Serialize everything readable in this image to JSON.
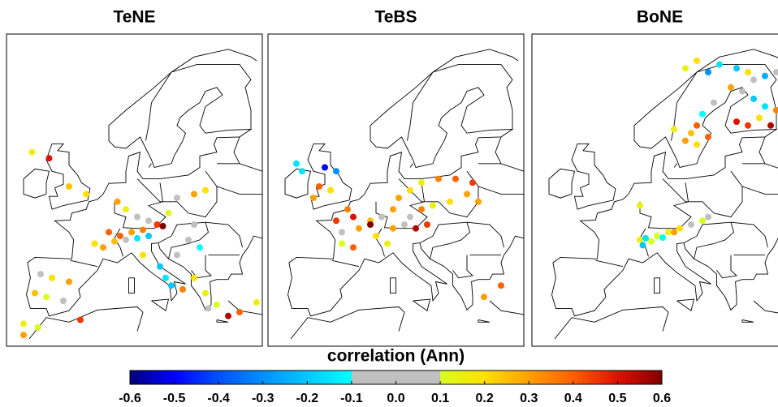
{
  "panels": [
    {
      "title": "TeNE",
      "points": [
        {
          "lon": -8.5,
          "lat": 57.5,
          "value": 0.15
        },
        {
          "lon": -5.5,
          "lat": 56.7,
          "value": 0.5
        },
        {
          "lon": -2,
          "lat": 53,
          "value": 0.25
        },
        {
          "lon": 1,
          "lat": 52,
          "value": 0.2
        },
        {
          "lon": 6.5,
          "lat": 51,
          "value": 0.3
        },
        {
          "lon": 8,
          "lat": 50,
          "value": 0.15
        },
        {
          "lon": 10,
          "lat": 49,
          "value": 0
        },
        {
          "lon": 12,
          "lat": 48.5,
          "value": -0.05
        },
        {
          "lon": 13.5,
          "lat": 48,
          "value": 0.45
        },
        {
          "lon": 14.5,
          "lat": 47.8,
          "value": 0.6
        },
        {
          "lon": 11,
          "lat": 47.3,
          "value": 0.35
        },
        {
          "lon": 9,
          "lat": 47,
          "value": 0.3
        },
        {
          "lon": 7,
          "lat": 46.5,
          "value": 0.4
        },
        {
          "lon": 6,
          "lat": 45.8,
          "value": 0.25
        },
        {
          "lon": 8,
          "lat": 46,
          "value": 0.05
        },
        {
          "lon": 10,
          "lat": 46.2,
          "value": -0.15
        },
        {
          "lon": 12,
          "lat": 46.5,
          "value": -0.2
        },
        {
          "lon": 4,
          "lat": 45,
          "value": 0.3
        },
        {
          "lon": 2.5,
          "lat": 45.5,
          "value": 0.2
        },
        {
          "lon": 15.5,
          "lat": 49.5,
          "value": 0.1
        },
        {
          "lon": 17,
          "lat": 51.5,
          "value": 0.05
        },
        {
          "lon": 20,
          "lat": 52,
          "value": 0.3
        },
        {
          "lon": 22,
          "lat": 52.5,
          "value": 0.2
        },
        {
          "lon": 20,
          "lat": 48,
          "value": -0.05
        },
        {
          "lon": 19,
          "lat": 46,
          "value": 0
        },
        {
          "lon": 21,
          "lat": 45,
          "value": -0.1
        },
        {
          "lon": 17,
          "lat": 44,
          "value": 0
        },
        {
          "lon": 14,
          "lat": 42.5,
          "value": -0.2
        },
        {
          "lon": 11,
          "lat": 44,
          "value": 0.2
        },
        {
          "lon": 15,
          "lat": 41,
          "value": -0.15
        },
        {
          "lon": 16,
          "lat": 40,
          "value": -0.2
        },
        {
          "lon": 18,
          "lat": 39.5,
          "value": 0.35
        },
        {
          "lon": 20,
          "lat": 41,
          "value": 0.2
        },
        {
          "lon": 22,
          "lat": 39,
          "value": 0.15
        },
        {
          "lon": 24,
          "lat": 37.5,
          "value": 0.1
        },
        {
          "lon": 26,
          "lat": 36,
          "value": 0.55
        },
        {
          "lon": 28,
          "lat": 36.5,
          "value": 0.4
        },
        {
          "lon": 22.5,
          "lat": 37,
          "value": 0
        },
        {
          "lon": -7,
          "lat": 41.5,
          "value": 0
        },
        {
          "lon": -5,
          "lat": 41,
          "value": 0.2
        },
        {
          "lon": -2,
          "lat": 40.5,
          "value": 0.3
        },
        {
          "lon": -8,
          "lat": 39,
          "value": 0.25
        },
        {
          "lon": -6,
          "lat": 38.5,
          "value": 0.1
        },
        {
          "lon": -3,
          "lat": 38,
          "value": 0.05
        },
        {
          "lon": -10,
          "lat": 35,
          "value": 0.15
        },
        {
          "lon": 0,
          "lat": 35.5,
          "value": 0.45
        },
        {
          "lon": -10,
          "lat": 33.5,
          "value": 0.3
        },
        {
          "lon": 31,
          "lat": 37.8,
          "value": 0.15
        },
        {
          "lon": -7.5,
          "lat": 34.5,
          "value": 0.1
        },
        {
          "lon": 5,
          "lat": 47,
          "value": 0.4
        }
      ]
    },
    {
      "title": "TeBS",
      "points": [
        {
          "lon": -8,
          "lat": 56,
          "value": -0.15
        },
        {
          "lon": -7,
          "lat": 55,
          "value": -0.15
        },
        {
          "lon": -3,
          "lat": 55.5,
          "value": -0.5
        },
        {
          "lon": -1,
          "lat": 55,
          "value": -0.3
        },
        {
          "lon": -4,
          "lat": 53,
          "value": 0.4
        },
        {
          "lon": -5,
          "lat": 51.5,
          "value": 0.3
        },
        {
          "lon": -2,
          "lat": 52.5,
          "value": 0.2
        },
        {
          "lon": 1,
          "lat": 50,
          "value": 0.35
        },
        {
          "lon": 2,
          "lat": 49,
          "value": 0.5
        },
        {
          "lon": -1,
          "lat": 48.5,
          "value": 0.45
        },
        {
          "lon": 0,
          "lat": 47,
          "value": 0
        },
        {
          "lon": 3,
          "lat": 47.5,
          "value": 0.3
        },
        {
          "lon": 5,
          "lat": 48.5,
          "value": 0.25
        },
        {
          "lon": 7,
          "lat": 49,
          "value": 0
        },
        {
          "lon": 9,
          "lat": 50,
          "value": 0.3
        },
        {
          "lon": 10,
          "lat": 51.5,
          "value": 0.3
        },
        {
          "lon": 12,
          "lat": 52.5,
          "value": 0.2
        },
        {
          "lon": 14,
          "lat": 53.5,
          "value": 0.15
        },
        {
          "lon": 17,
          "lat": 54,
          "value": 0.35
        },
        {
          "lon": 20,
          "lat": 54,
          "value": 0.4
        },
        {
          "lon": 23,
          "lat": 53.5,
          "value": 0.45
        },
        {
          "lon": 22,
          "lat": 52,
          "value": 0.3
        },
        {
          "lon": 24,
          "lat": 51,
          "value": 0.3
        },
        {
          "lon": 19,
          "lat": 51,
          "value": 0.2
        },
        {
          "lon": 16,
          "lat": 50.5,
          "value": 0.15
        },
        {
          "lon": 14,
          "lat": 50,
          "value": 0.35
        },
        {
          "lon": 12,
          "lat": 49,
          "value": 0
        },
        {
          "lon": 11,
          "lat": 48,
          "value": -0.05
        },
        {
          "lon": 9,
          "lat": 47.5,
          "value": 0.3
        },
        {
          "lon": 13,
          "lat": 47.5,
          "value": 0.55
        },
        {
          "lon": 15,
          "lat": 48,
          "value": 0.45
        },
        {
          "lon": 6,
          "lat": 46.5,
          "value": 0.2
        },
        {
          "lon": 8,
          "lat": 45.5,
          "value": 0.15
        },
        {
          "lon": 2,
          "lat": 45,
          "value": 0.4
        },
        {
          "lon": 0,
          "lat": 45.5,
          "value": 0.1
        },
        {
          "lon": 28,
          "lat": 40,
          "value": 0.4
        },
        {
          "lon": 25,
          "lat": 38.5,
          "value": 0.3
        },
        {
          "lon": 5,
          "lat": 48,
          "value": 0.6
        }
      ]
    },
    {
      "title": "BoNE",
      "points": [
        {
          "lon": 14,
          "lat": 68.5,
          "value": 0.15
        },
        {
          "lon": 16,
          "lat": 69.5,
          "value": 0.2
        },
        {
          "lon": 18,
          "lat": 68,
          "value": -0.3
        },
        {
          "lon": 20,
          "lat": 69,
          "value": -0.15
        },
        {
          "lon": 23,
          "lat": 68.5,
          "value": -0.2
        },
        {
          "lon": 25,
          "lat": 68,
          "value": 0.2
        },
        {
          "lon": 26,
          "lat": 67,
          "value": -0.05
        },
        {
          "lon": 28,
          "lat": 67.5,
          "value": -0.25
        },
        {
          "lon": 30,
          "lat": 68,
          "value": -0.05
        },
        {
          "lon": 22,
          "lat": 66,
          "value": 0.3
        },
        {
          "lon": 24,
          "lat": 65.5,
          "value": 0.05
        },
        {
          "lon": 26,
          "lat": 64.5,
          "value": -0.2
        },
        {
          "lon": 28,
          "lat": 63.5,
          "value": -0.15
        },
        {
          "lon": 30,
          "lat": 63,
          "value": 0.35
        },
        {
          "lon": 27,
          "lat": 62,
          "value": 0.2
        },
        {
          "lon": 25,
          "lat": 61,
          "value": 0.45
        },
        {
          "lon": 23,
          "lat": 61.5,
          "value": 0.5
        },
        {
          "lon": 29,
          "lat": 61,
          "value": 0.55
        },
        {
          "lon": 31,
          "lat": 61.5,
          "value": 0.3
        },
        {
          "lon": 19,
          "lat": 64,
          "value": 0
        },
        {
          "lon": 17,
          "lat": 62.5,
          "value": -0.1
        },
        {
          "lon": 16,
          "lat": 61,
          "value": 0.4
        },
        {
          "lon": 15,
          "lat": 60,
          "value": 0.25
        },
        {
          "lon": 18,
          "lat": 59.5,
          "value": 0.4
        },
        {
          "lon": 14,
          "lat": 59,
          "value": 0.3
        },
        {
          "lon": 12,
          "lat": 60.5,
          "value": 0.15
        },
        {
          "lon": 16,
          "lat": 58.5,
          "value": 0.2
        },
        {
          "lon": 6,
          "lat": 50.5,
          "value": 0.15
        },
        {
          "lon": 9,
          "lat": 46.5,
          "value": 0.1
        },
        {
          "lon": 11,
          "lat": 47,
          "value": 0.15
        },
        {
          "lon": 13,
          "lat": 47.5,
          "value": 0.2
        },
        {
          "lon": 15,
          "lat": 48,
          "value": -0.05
        },
        {
          "lon": 17,
          "lat": 48.5,
          "value": 0.1
        },
        {
          "lon": 18,
          "lat": 49,
          "value": 0.05
        },
        {
          "lon": 6,
          "lat": 46,
          "value": 0.15
        },
        {
          "lon": 7,
          "lat": 46.2,
          "value": -0.15
        },
        {
          "lon": 8,
          "lat": 45.8,
          "value": 0.1
        },
        {
          "lon": 10,
          "lat": 46.3,
          "value": -0.1
        },
        {
          "lon": 6.5,
          "lat": 45.3,
          "value": -0.2
        },
        {
          "lon": 12,
          "lat": 47,
          "value": 0.3
        }
      ]
    }
  ],
  "colorbar": {
    "label": "correlation (Ann)",
    "xlim": [
      -0.6,
      0.6
    ],
    "xticks": [
      -0.6,
      -0.5,
      -0.4,
      -0.3,
      -0.2,
      -0.1,
      {
        "value": 0,
        "label": "0.0"
      },
      0.1,
      0.2,
      0.3,
      0.4,
      0.5,
      0.6
    ],
    "neutral_range": [
      -0.1,
      0.1
    ],
    "neutral_color": "#c0c0c0",
    "colors_below": [
      "#000080",
      "#0000ff",
      "#0050ff",
      "#0090ff",
      "#00c8ff",
      "#00ffff"
    ],
    "colors_above": [
      "#d8ff20",
      "#ffe000",
      "#ffa000",
      "#ff6000",
      "#e01000",
      "#800000"
    ]
  }
}
